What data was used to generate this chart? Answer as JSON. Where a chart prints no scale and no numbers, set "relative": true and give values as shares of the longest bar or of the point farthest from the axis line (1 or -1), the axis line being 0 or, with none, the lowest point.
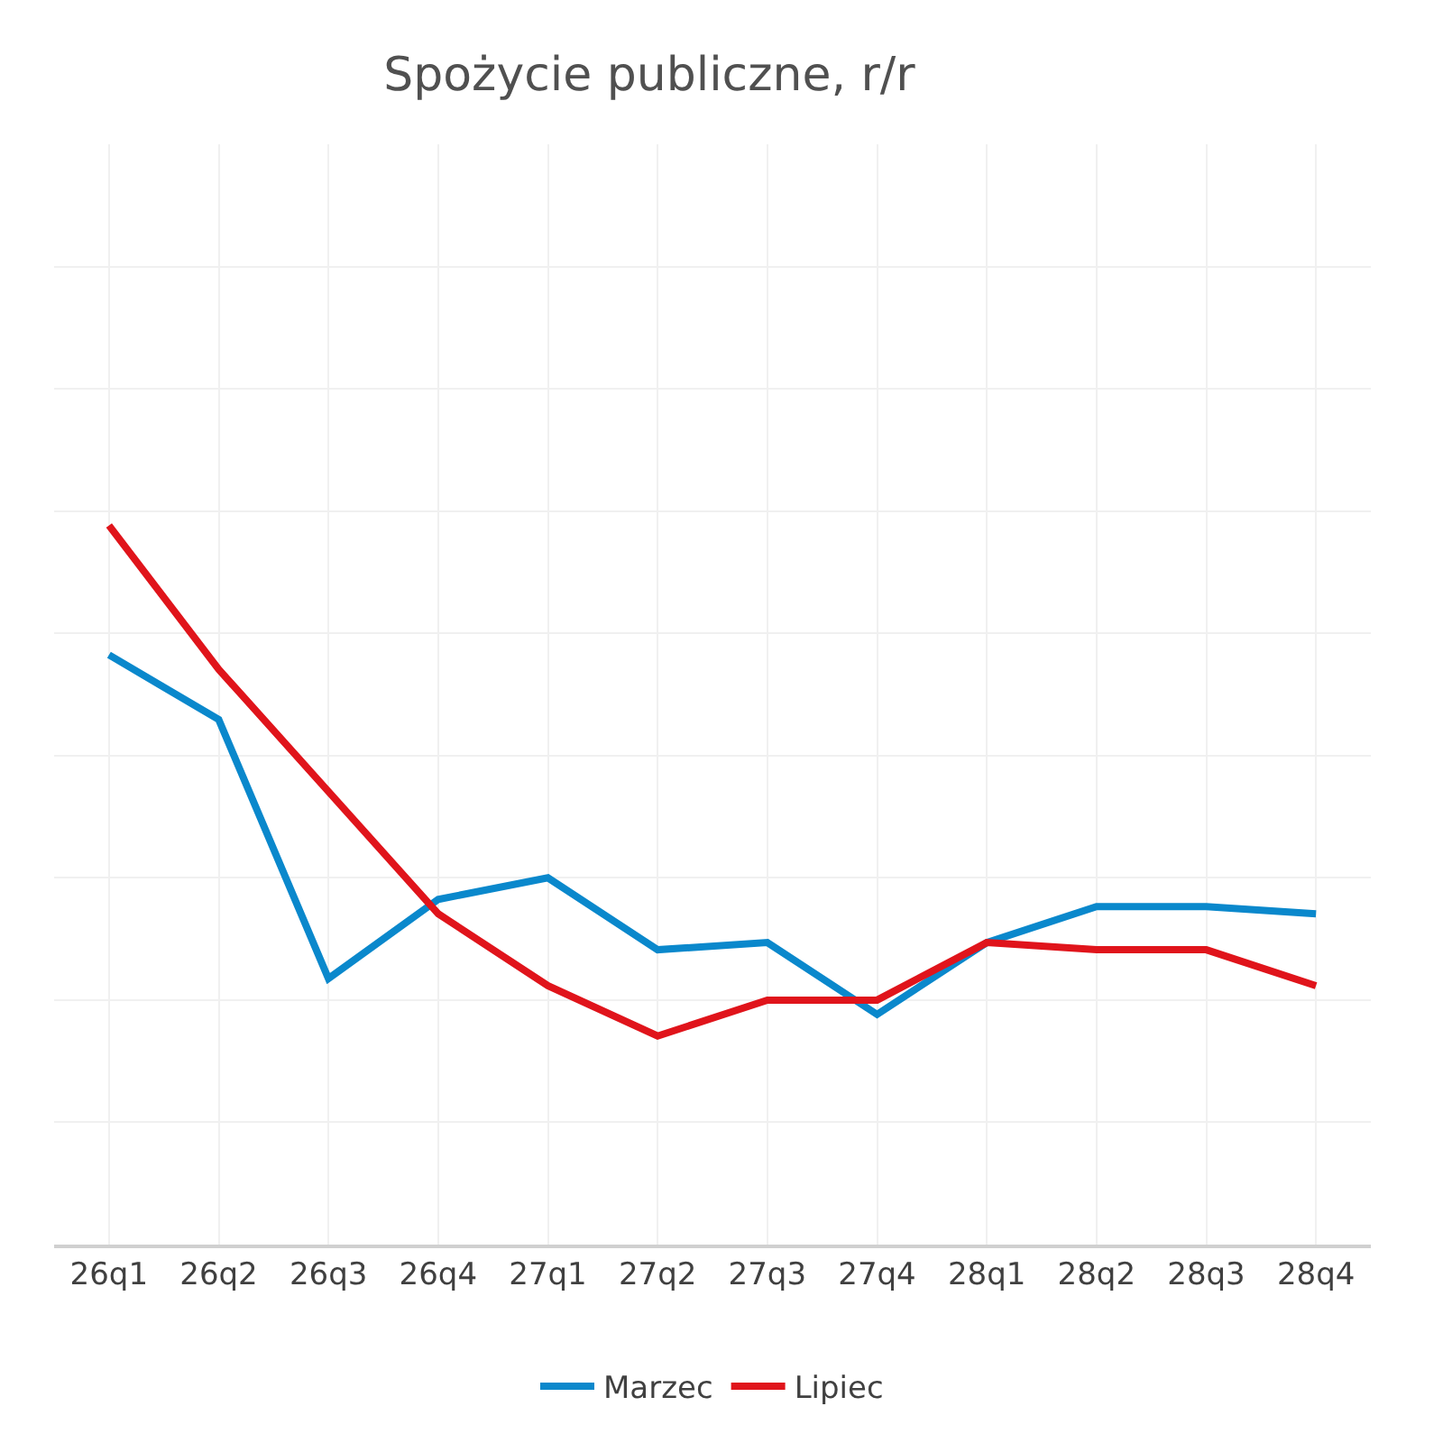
{
  "chart_data": {
    "type": "line",
    "title": "Spożycie publiczne, r/r",
    "relative": true,
    "grid": true,
    "legend": "bottom",
    "marker": "none",
    "line_style": "solid",
    "categories": [
      "26q1",
      "26q2",
      "26q3",
      "26q4",
      "27q1",
      "27q2",
      "27q3",
      "27q4",
      "28q1",
      "28q2",
      "28q3",
      "28q4"
    ],
    "series": [
      {
        "name": "Marzec",
        "color": "#0a88cc",
        "values": [
          0.82,
          0.73,
          0.37,
          0.48,
          0.51,
          0.41,
          0.42,
          0.32,
          0.42,
          0.47,
          0.47,
          0.46
        ]
      },
      {
        "name": "Lipiec",
        "color": "#e0141b",
        "values": [
          1,
          0.8,
          0.63,
          0.46,
          0.36,
          0.29,
          0.34,
          0.34,
          0.42,
          0.41,
          0.41,
          0.36
        ]
      }
    ]
  }
}
